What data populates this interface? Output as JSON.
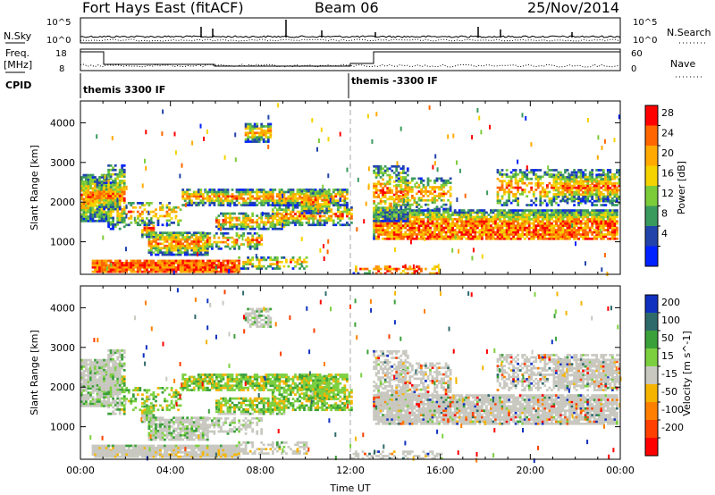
{
  "header": {
    "station": "Fort Hays East (fitACF)",
    "beam": "Beam 06",
    "date": "25/Nov/2014"
  },
  "strip": {
    "nsky_label": "N.Sky",
    "nsky_ticks": [
      "10^5",
      "10^0"
    ],
    "nsearch_label": "N.Search",
    "nsearch_ticks": [
      "10^5",
      "10^0"
    ],
    "freq_label": "Freq.",
    "freq_unit": "[MHz]",
    "freq_ticks": [
      "18",
      "8"
    ],
    "nave_label": "Nave",
    "nave_ticks": [
      "60",
      "0"
    ],
    "cpid_label": "CPID",
    "cpid_segments": [
      "themis 3300 IF",
      "themis -3300 IF"
    ]
  },
  "chart_data": [
    {
      "type": "heatmap",
      "name": "power",
      "ylabel": "Slant Range [km]",
      "xlabel": "",
      "ylim": [
        180,
        4550
      ],
      "yticks": [
        1000,
        2000,
        3000,
        4000
      ],
      "xticks": [
        "00:00",
        "04:00",
        "08:00",
        "12:00",
        "16:00",
        "20:00",
        "00:00"
      ],
      "xrange_hours": [
        0,
        24
      ],
      "colorbar": {
        "label": "Power [dB]",
        "ticks": [
          "28",
          "24",
          "20",
          "16",
          "12",
          "8",
          "4"
        ],
        "colors": [
          "#ff0000",
          "#ff6600",
          "#ffaa00",
          "#f5d300",
          "#7ccc3a",
          "#3a9a5e",
          "#2244aa",
          "#0022ff"
        ]
      }
    },
    {
      "type": "heatmap",
      "name": "velocity",
      "ylabel": "Slant Range [km]",
      "xlabel": "Time UT",
      "ylim": [
        180,
        4550
      ],
      "yticks": [
        1000,
        2000,
        3000,
        4000
      ],
      "xticks": [
        "00:00",
        "04:00",
        "08:00",
        "12:00",
        "16:00",
        "20:00",
        "00:00"
      ],
      "xrange_hours": [
        0,
        24
      ],
      "colorbar": {
        "label": "Velocity [m s^-1]",
        "ticks": [
          "200",
          "100",
          "50",
          "15",
          "-15",
          "-50",
          "-100",
          "-200"
        ],
        "colors": [
          "#1030c0",
          "#2f6a6a",
          "#3aa03a",
          "#7cd040",
          "#c8c8c0",
          "#f5b400",
          "#ff8000",
          "#ff4000",
          "#ff0000"
        ]
      }
    }
  ]
}
